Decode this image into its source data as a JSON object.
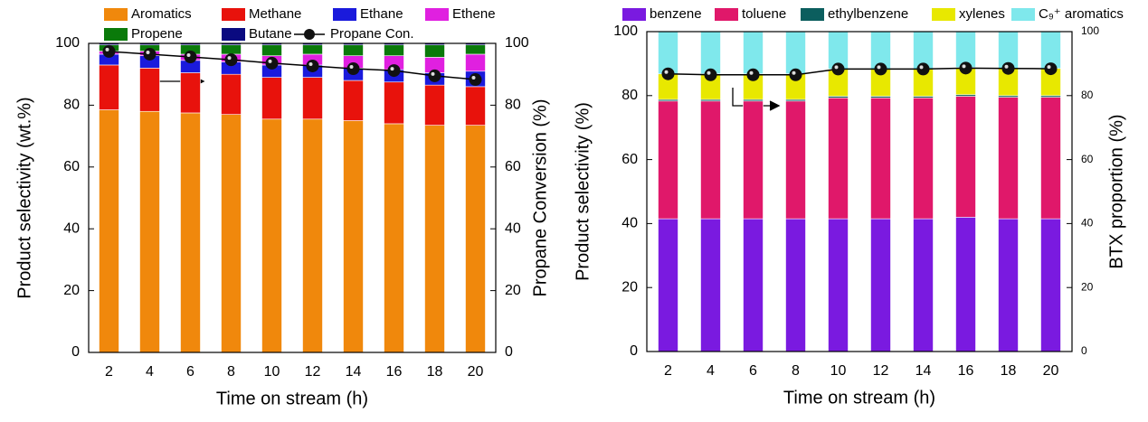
{
  "chart_data": [
    {
      "type": "bar",
      "stacked": true,
      "xlabel": "Time on stream (h)",
      "ylabel": "Product selectivity (wt.%)",
      "y2label": "Propane Conversion (%)",
      "categories": [
        "2",
        "4",
        "6",
        "8",
        "10",
        "12",
        "14",
        "16",
        "18",
        "20"
      ],
      "series": [
        {
          "name": "Aromatics",
          "color": "#f0880c",
          "legend_color": "#000000",
          "values": [
            78.5,
            78,
            77.5,
            77,
            75.5,
            75.5,
            75,
            74,
            73.5,
            73.5
          ]
        },
        {
          "name": "Methane",
          "color": "#e8120c",
          "legend_color": "#e8120c",
          "values": [
            14.5,
            14,
            13,
            13,
            13.5,
            13.5,
            13,
            13.5,
            13,
            12.5
          ]
        },
        {
          "name": "Ethane",
          "color": "#1a1adc",
          "legend_color": "#1a1adc",
          "values": [
            3.5,
            4,
            4,
            4,
            4,
            4,
            4,
            4,
            4,
            5
          ]
        },
        {
          "name": "Ethene",
          "color": "#e020e0",
          "legend_color": "#e020e0",
          "values": [
            1,
            1.5,
            2,
            2.5,
            3,
            3.5,
            4,
            4.5,
            5,
            5.5
          ]
        },
        {
          "name": "Propene",
          "color": "#0a7a0a",
          "legend_color": "#0a7a0a",
          "values": [
            2,
            2,
            3,
            3,
            3.5,
            3,
            3.5,
            3.5,
            4,
            3
          ]
        },
        {
          "name": "Butane",
          "color": "#0a0a80",
          "legend_color": "#0a0a80",
          "values": [
            0.5,
            0.5,
            0.5,
            0.5,
            0.5,
            0.5,
            0.5,
            0.5,
            0.5,
            0.5
          ]
        },
        {
          "name": "Propane Con.",
          "type": "line",
          "axis": "y2",
          "color": "#000000",
          "legend_color": "#000000",
          "values": [
            97.4,
            96.5,
            95.6,
            94.7,
            93.6,
            92.7,
            91.8,
            91.2,
            89.5,
            88.3
          ]
        }
      ],
      "ylim": [
        0,
        100
      ],
      "yticks": [
        0,
        20,
        40,
        60,
        80,
        100
      ],
      "y2lim": [
        0,
        100
      ],
      "y2ticks": [
        0,
        20,
        40,
        60,
        80,
        100
      ]
    },
    {
      "type": "bar",
      "stacked": true,
      "xlabel": "Time on stream (h)",
      "ylabel": "Product selectivity (%)",
      "y2label": "BTX proportion (%)",
      "categories": [
        "2",
        "4",
        "6",
        "8",
        "10",
        "12",
        "14",
        "16",
        "18",
        "20"
      ],
      "series": [
        {
          "name": "benzene",
          "color": "#7a1ae0",
          "legend_color": "#000000",
          "values": [
            41.5,
            41.5,
            41.5,
            41.5,
            41.5,
            41.5,
            41.5,
            42,
            41.5,
            41.5
          ]
        },
        {
          "name": "toluene",
          "color": "#e0186a",
          "legend_color": "#e8120c",
          "values": [
            36.8,
            36.8,
            36.8,
            36.8,
            37.8,
            37.8,
            37.8,
            37.8,
            38,
            38
          ]
        },
        {
          "name": "ethylbenzene",
          "color": "#0b5e5e",
          "legend_color": "#1a1adc",
          "values": [
            0.5,
            0.5,
            0.5,
            0.5,
            0.5,
            0.5,
            0.5,
            0.5,
            0.5,
            0.5
          ]
        },
        {
          "name": "xylenes",
          "color": "#e8e800",
          "legend_color": "#e020e0",
          "values": [
            8,
            8,
            8,
            8,
            8.5,
            8.5,
            8.5,
            8.5,
            8.5,
            8.5
          ]
        },
        {
          "name": "C₉⁺ aromatics",
          "color": "#7fe8ec",
          "legend_color": "#0a7a0a",
          "values": [
            13.2,
            13.2,
            13.2,
            13.2,
            11.7,
            11.7,
            11.7,
            11.2,
            11.5,
            11.5
          ]
        },
        {
          "name": "BTX proportion",
          "type": "line",
          "axis": "y2",
          "color": "#000000",
          "legend": false,
          "values": [
            86.8,
            86.5,
            86.5,
            86.5,
            88.3,
            88.3,
            88.3,
            88.6,
            88.5,
            88.4
          ]
        }
      ],
      "ylim": [
        0,
        100
      ],
      "yticks": [
        0,
        20,
        40,
        60,
        80,
        100
      ],
      "y2lim": [
        0,
        100
      ],
      "y2ticks": [
        0,
        20,
        40,
        60,
        80,
        100
      ]
    }
  ]
}
